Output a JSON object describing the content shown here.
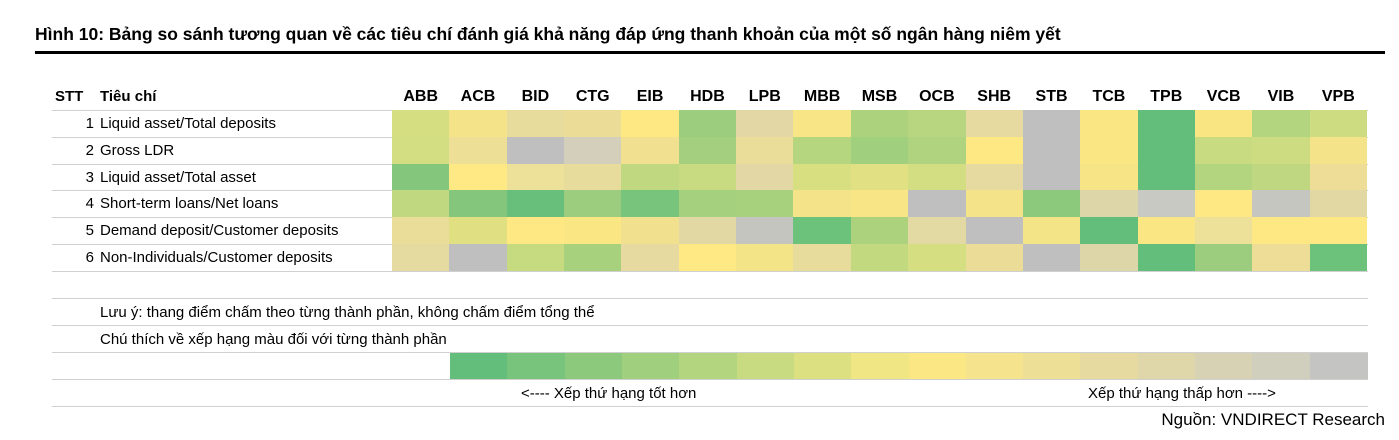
{
  "title": "Hình 10: Bảng so sánh tương quan về các tiêu chí đánh giá khả năng đáp ứng thanh khoản của một số ngân hàng niêm yết",
  "table": {
    "header": [
      "STT",
      "Tiêu chí"
    ],
    "banks": [
      "ABB",
      "ACB",
      "BID",
      "CTG",
      "EIB",
      "HDB",
      "LPB",
      "MBB",
      "MSB",
      "OCB",
      "SHB",
      "STB",
      "TCB",
      "TPB",
      "VCB",
      "VIB",
      "VPB"
    ],
    "rows": [
      {
        "stt": 1,
        "label": "Liquid asset/Total deposits",
        "colors": [
          "#d5df81",
          "#f5e38a",
          "#e8dc9d",
          "#ebdc98",
          "#fde884",
          "#9ccc7d",
          "#e3d8a5",
          "#f8e585",
          "#add27e",
          "#b8d67f",
          "#e6daa0",
          "#bfbfbf",
          "#fbe684",
          "#63be7b",
          "#fae583",
          "#b4d57f",
          "#cddc81"
        ]
      },
      {
        "stt": 2,
        "label": "Gross LDR",
        "colors": [
          "#d2de81",
          "#eedf97",
          "#bfbfbf",
          "#d3cfbb",
          "#f0e08f",
          "#a3cf7e",
          "#eadd9a",
          "#b6d57f",
          "#a0cf7e",
          "#b0d37f",
          "#fde884",
          "#bfbfbf",
          "#fbe684",
          "#63be7b",
          "#c8db80",
          "#cddc81",
          "#f5e38a"
        ]
      },
      {
        "stt": 3,
        "label": "Liquid asset/Total asset",
        "colors": [
          "#84c77c",
          "#ffe984",
          "#ede098",
          "#e8dc9d",
          "#c0d880",
          "#c8db80",
          "#e3d8a5",
          "#d8df81",
          "#e1e082",
          "#d2de81",
          "#e6daa0",
          "#bfbfbf",
          "#f7e486",
          "#63be7b",
          "#b4d57f",
          "#bed780",
          "#eddd96"
        ]
      },
      {
        "stt": 4,
        "label": "Short-term loans/Net loans",
        "colors": [
          "#c0d880",
          "#84c77c",
          "#67bf7b",
          "#9ccc7d",
          "#78c47c",
          "#a5d17e",
          "#a8d17e",
          "#f5e38a",
          "#f8e585",
          "#bfbfbf",
          "#f5e38a",
          "#8cc97d",
          "#ddd6a8",
          "#c8c9c2",
          "#fde884",
          "#c6c6c0",
          "#e1d8a3"
        ]
      },
      {
        "stt": 5,
        "label": "Demand deposit/Customer deposits",
        "colors": [
          "#eadd9a",
          "#e0e082",
          "#fde884",
          "#fbe684",
          "#f1e08e",
          "#e1d8a3",
          "#c5c5c0",
          "#6cc17b",
          "#add27e",
          "#e3d9a2",
          "#bfbfbf",
          "#f3e488",
          "#63be7b",
          "#fbe684",
          "#ede098",
          "#fde884",
          "#fde884"
        ]
      },
      {
        "stt": 6,
        "label": "Non-Individuals/Customer deposits",
        "colors": [
          "#e5da9f",
          "#bfbfbf",
          "#c6db80",
          "#a8d17e",
          "#e6daa0",
          "#ffe984",
          "#f3e488",
          "#e8dc9d",
          "#c2d980",
          "#d5df81",
          "#ebdc98",
          "#bfbfbf",
          "#ddd6a8",
          "#63be7b",
          "#9ccc7d",
          "#eddd96",
          "#6cc17b"
        ]
      }
    ]
  },
  "notes": [
    "Lưu ý: thang điểm chấm theo từng thành phần, không chấm điểm tổng thể",
    "Chú thích về xếp hạng màu đối với từng thành phần"
  ],
  "legend": {
    "colors": [
      "#63be7b",
      "#78c47c",
      "#8cc97d",
      "#a0cf7e",
      "#b4d57f",
      "#c8db80",
      "#dce081",
      "#f0e683",
      "#fbe783",
      "#f5e38d",
      "#eedf97",
      "#e6daa0",
      "#dfd6aa",
      "#d7d2b3",
      "#d0cebd",
      "#c4c4c2"
    ],
    "left": "<---- Xếp thứ hạng tốt hơn",
    "right": "Xếp thứ hạng thấp hơn ---->"
  },
  "source": "Nguồn: VNDIRECT Research"
}
